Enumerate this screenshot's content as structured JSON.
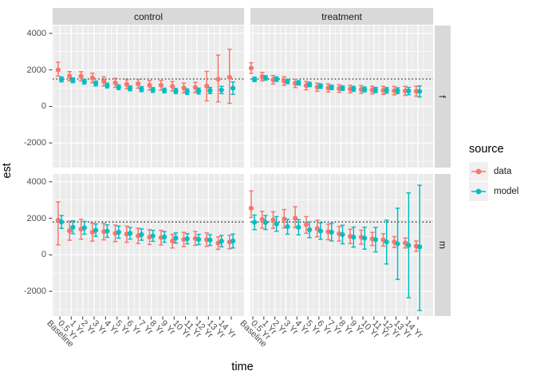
{
  "figure": {
    "y_axis": {
      "title": "est",
      "ticks": [
        "4000",
        "2000",
        "0",
        "-2000"
      ],
      "tick_values": [
        4000,
        2000,
        0,
        -2000
      ]
    },
    "x_axis": {
      "title": "time"
    },
    "facets": {
      "cols": [
        "control",
        "treatment"
      ],
      "rows": [
        "f",
        "m"
      ]
    },
    "legend": {
      "title": "source",
      "items": [
        {
          "label": "data",
          "color": "#F8766D"
        },
        {
          "label": "model",
          "color": "#00BFC4"
        }
      ]
    },
    "colors": {
      "panel_bg": "#EBEBEB",
      "grid": "#FFFFFF",
      "strip_bg": "#D9D9D9",
      "tick_text": "#4D4D4D",
      "tick_mark": "#333333",
      "ref_line": "#000000"
    }
  },
  "chart_data": {
    "type": "pointrange-errorbar-faceted",
    "title": "",
    "xlabel": "time",
    "ylabel": "est",
    "ylim": [
      -3350,
      4430
    ],
    "y_major_gridlines": [
      4000,
      2000,
      0,
      -2000
    ],
    "y_minor_gridlines": [
      3000,
      1000,
      -1000,
      -3000
    ],
    "legend_position": "right",
    "categories": [
      "Baseline",
      "0.5 Yr",
      "1 Yr",
      "2 Yr",
      "3 Yr",
      "4 Yr",
      "5 Yr",
      "6 Yr",
      "7 Yr",
      "8 Yr",
      "9 Yr",
      "10 Yr",
      "11 Yr",
      "12 Yr",
      "13 Yr",
      "14 Yr"
    ],
    "reference_dotted_line": {
      "f": 1500,
      "m": 1800
    },
    "panels": [
      {
        "facet_col": "control",
        "facet_row": "f",
        "series": [
          {
            "name": "data",
            "est": [
              2000,
              1660,
              1650,
              1560,
              1370,
              1290,
              1210,
              1240,
              1160,
              1160,
              1100,
              1010,
              1040,
              1110,
              1490,
              1590
            ],
            "lo": [
              1660,
              1400,
              1400,
              1300,
              1120,
              1040,
              960,
              1000,
              900,
              900,
              840,
              740,
              760,
              300,
              250,
              170
            ],
            "hi": [
              2420,
              1910,
              1900,
              1820,
              1620,
              1540,
              1460,
              1480,
              1420,
              1420,
              1360,
              1280,
              1320,
              1920,
              2810,
              3130
            ]
          },
          {
            "name": "model",
            "est": [
              1480,
              1430,
              1360,
              1260,
              1140,
              1050,
              990,
              950,
              900,
              870,
              840,
              810,
              840,
              870,
              900,
              1000
            ],
            "lo": [
              1350,
              1300,
              1230,
              1120,
              1010,
              920,
              860,
              810,
              770,
              740,
              700,
              660,
              680,
              700,
              700,
              660
            ],
            "hi": [
              1610,
              1560,
              1490,
              1390,
              1270,
              1180,
              1120,
              1080,
              1030,
              1000,
              980,
              960,
              1000,
              1040,
              1100,
              1340
            ]
          }
        ]
      },
      {
        "facet_col": "treatment",
        "facet_row": "f",
        "series": [
          {
            "name": "data",
            "est": [
              2100,
              1630,
              1460,
              1390,
              1260,
              1140,
              1050,
              1010,
              980,
              950,
              930,
              900,
              880,
              860,
              850,
              830
            ],
            "lo": [
              1810,
              1400,
              1230,
              1160,
              1030,
              910,
              830,
              790,
              770,
              740,
              720,
              690,
              660,
              630,
              600,
              560
            ],
            "hi": [
              2390,
              1860,
              1690,
              1620,
              1490,
              1370,
              1270,
              1230,
              1190,
              1160,
              1140,
              1110,
              1100,
              1090,
              1100,
              1100
            ]
          },
          {
            "name": "model",
            "est": [
              1480,
              1560,
              1490,
              1370,
              1290,
              1200,
              1110,
              1040,
              1000,
              960,
              930,
              900,
              880,
              860,
              840,
              820
            ],
            "lo": [
              1360,
              1440,
              1370,
              1250,
              1170,
              1080,
              990,
              920,
              880,
              830,
              800,
              760,
              730,
              700,
              640,
              520
            ],
            "hi": [
              1600,
              1680,
              1610,
              1490,
              1410,
              1320,
              1230,
              1160,
              1120,
              1090,
              1060,
              1040,
              1030,
              1020,
              1040,
              1120
            ]
          }
        ]
      },
      {
        "facet_col": "control",
        "facet_row": "m",
        "series": [
          {
            "name": "data",
            "est": [
              1900,
              1320,
              1400,
              1240,
              1270,
              1180,
              1130,
              1040,
              970,
              940,
              750,
              840,
              900,
              830,
              640,
              700
            ],
            "lo": [
              550,
              800,
              850,
              750,
              820,
              730,
              690,
              620,
              560,
              540,
              380,
              450,
              520,
              460,
              300,
              330
            ],
            "hi": [
              2900,
              1840,
              1950,
              1730,
              1720,
              1630,
              1570,
              1460,
              1380,
              1340,
              1120,
              1230,
              1280,
              1200,
              980,
              1070
            ]
          },
          {
            "name": "model",
            "est": [
              1800,
              1510,
              1480,
              1350,
              1300,
              1240,
              1180,
              1110,
              1040,
              980,
              920,
              880,
              840,
              810,
              750,
              760
            ],
            "lo": [
              1450,
              1160,
              1130,
              1010,
              960,
              910,
              860,
              800,
              740,
              690,
              640,
              600,
              560,
              520,
              440,
              380
            ],
            "hi": [
              2150,
              1860,
              1830,
              1690,
              1640,
              1570,
              1500,
              1420,
              1340,
              1270,
              1200,
              1160,
              1120,
              1100,
              1060,
              1140
            ]
          }
        ]
      },
      {
        "facet_col": "treatment",
        "facet_row": "m",
        "series": [
          {
            "name": "data",
            "est": [
              2550,
              1940,
              1910,
              1970,
              2010,
              1660,
              1440,
              1260,
              1150,
              1010,
              970,
              870,
              820,
              700,
              650,
              480
            ],
            "lo": [
              2050,
              1470,
              1450,
              1480,
              1490,
              1180,
              990,
              830,
              750,
              620,
              590,
              510,
              480,
              400,
              380,
              200
            ],
            "hi": [
              3500,
              2380,
              2360,
              2480,
              2630,
              2090,
              1890,
              1680,
              1550,
              1400,
              1350,
              1230,
              1160,
              1000,
              920,
              760
            ]
          },
          {
            "name": "model",
            "est": [
              1780,
              1770,
              1690,
              1540,
              1510,
              1370,
              1300,
              1240,
              1110,
              970,
              910,
              830,
              700,
              600,
              520,
              430
            ],
            "lo": [
              1380,
              1390,
              1290,
              1130,
              1090,
              940,
              850,
              760,
              600,
              420,
              310,
              160,
              -500,
              -1350,
              -2350,
              -3050
            ],
            "hi": [
              2180,
              2150,
              2090,
              1950,
              1930,
              1800,
              1750,
              1720,
              1620,
              1520,
              1510,
              1500,
              1900,
              2550,
              3390,
              3810
            ]
          }
        ]
      }
    ]
  }
}
